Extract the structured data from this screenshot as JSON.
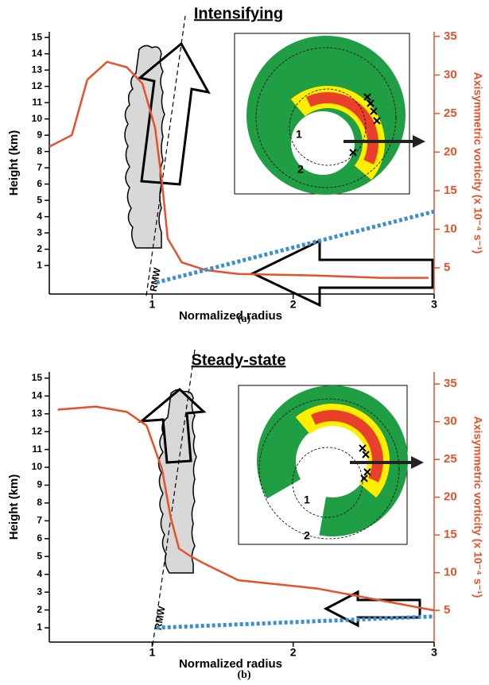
{
  "chart_data": [
    {
      "type": "line",
      "title": "Intensifying",
      "caption": "(a)",
      "x_label": "Normalized radius",
      "y_label": "Height (km)",
      "y2_label": "Axisymmetric vorticity (x 10⁻⁴ s⁻¹)",
      "annotation": "RMW",
      "inset_labels": [
        "1",
        "2"
      ],
      "xlim": [
        0.27,
        3
      ],
      "xticks": [
        1,
        2,
        3
      ],
      "ylim": [
        -0.75,
        15.35
      ],
      "yticks": [
        1,
        2,
        3,
        4,
        5,
        6,
        7,
        8,
        9,
        10,
        11,
        12,
        13,
        14,
        15
      ],
      "y2lim": [
        1.6,
        35.6
      ],
      "y2ticks": [
        5,
        10,
        15,
        20,
        25,
        30,
        35
      ],
      "series": [
        {
          "color": "#e8502a",
          "axis": "y2",
          "style": "solid",
          "x": [
            0.27,
            0.43,
            0.54,
            0.68,
            0.82,
            0.93,
            1.02,
            1.07,
            1.11,
            1.21,
            1.38,
            1.61,
            2.17,
            2.62,
            2.96
          ],
          "values": [
            20.7,
            22.2,
            29.4,
            31.7,
            31,
            28.9,
            23.2,
            16,
            8.8,
            5.7,
            4.7,
            4.2,
            4,
            3.7,
            3.7
          ]
        },
        {
          "color": "#3a8fd0",
          "axis": "y2",
          "style": "dotted",
          "x": [
            1.03,
            3
          ],
          "values": [
            3.1,
            12.3
          ]
        }
      ]
    },
    {
      "type": "line",
      "title": "Steady-state",
      "caption": "(b)",
      "x_label": "Normalized radius",
      "y_label": "Height (km)",
      "y2_label": "Axisymmetric vorticity (x 10⁻⁴ s⁻¹)",
      "annotation": "RMW",
      "inset_labels": [
        "1",
        "2"
      ],
      "xlim": [
        0.27,
        3
      ],
      "xticks": [
        1,
        2,
        3
      ],
      "ylim": [
        0.2,
        15.35
      ],
      "yticks": [
        1,
        2,
        3,
        4,
        5,
        6,
        7,
        8,
        9,
        10,
        11,
        12,
        13,
        14,
        15
      ],
      "y2lim": [
        0.8,
        36.6
      ],
      "y2ticks": [
        5,
        10,
        15,
        20,
        25,
        30,
        35
      ],
      "series": [
        {
          "color": "#e8502a",
          "axis": "y2",
          "style": "solid",
          "x": [
            0.33,
            0.6,
            0.82,
            0.96,
            1.07,
            1.13,
            1.19,
            1.27,
            1.38,
            1.61,
            2.17,
            3
          ],
          "values": [
            31.6,
            32,
            31.3,
            29.5,
            23.7,
            17.4,
            13.2,
            12.2,
            11.1,
            9,
            7.9,
            5
          ]
        },
        {
          "color": "#3a8fd0",
          "axis": "y2",
          "style": "dotted",
          "x": [
            1.03,
            3
          ],
          "values": [
            2.7,
            4.2
          ]
        }
      ]
    }
  ]
}
